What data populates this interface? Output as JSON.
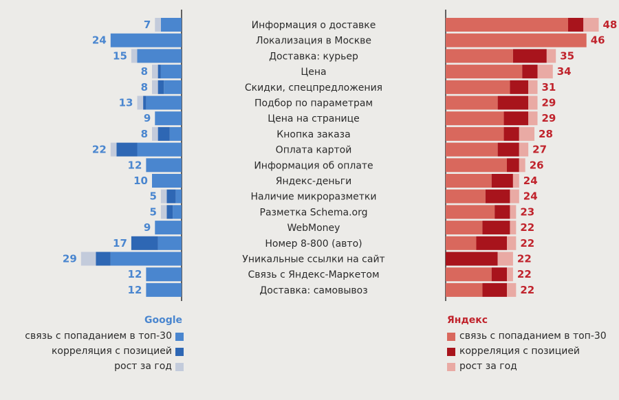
{
  "colors": {
    "background": "#ecebe8",
    "google": {
      "top30": "#4a86cf",
      "correlation": "#2e67b4",
      "growth": "#c3cbdb",
      "label": "#4a86cf"
    },
    "yandex": {
      "top30": "#d9685d",
      "correlation": "#a8141c",
      "growth": "#e9aaa4",
      "label": "#c0232c"
    }
  },
  "chart_data": {
    "type": "bar",
    "orientation": "horizontal",
    "categories": [
      "Информация о доставке",
      "Локализация в Москве",
      "Доставка: курьер",
      "Цена",
      "Скидки, спецпредложения",
      "Подбор по параметрам",
      "Цена на странице",
      "Кнопка заказа",
      "Оплата картой",
      "Информация об оплате",
      "Яндекс-деньги",
      "Наличие микроразметки",
      "Разметка Schema.org",
      "WebMoney",
      "Номер 8-800 (авто)",
      "Уникальные ссылки на сайт",
      "Связь с Яндекс-Маркетом",
      "Доставка: самовывоз"
    ],
    "google": {
      "title": "Google",
      "values": [
        7,
        24,
        15,
        8,
        8,
        13,
        9,
        8,
        22,
        12,
        10,
        5,
        5,
        9,
        17,
        29,
        12,
        12
      ],
      "series": [
        {
          "name": "связь с попаданием в топ-30",
          "values": [
            7,
            24,
            15,
            7,
            6,
            12,
            9,
            4,
            15,
            12,
            10,
            2,
            3,
            9,
            8,
            24,
            12,
            12
          ]
        },
        {
          "name": "корреляция с позицией",
          "values": [
            0,
            0,
            0,
            1,
            2,
            1,
            0,
            4,
            7,
            0,
            0,
            3,
            2,
            0,
            9,
            5,
            0,
            0
          ]
        },
        {
          "name": "рост за год",
          "values": [
            2,
            0,
            2,
            2,
            2,
            2,
            0,
            2,
            2,
            0,
            0,
            2,
            2,
            0,
            0,
            5,
            0,
            0
          ]
        }
      ]
    },
    "yandex": {
      "title": "Яндекс",
      "values": [
        48,
        46,
        35,
        34,
        31,
        29,
        29,
        28,
        27,
        26,
        24,
        24,
        23,
        22,
        22,
        22,
        22,
        22
      ],
      "series": [
        {
          "name": "связь с попаданием в топ-30",
          "values": [
            40,
            46,
            22,
            25,
            21,
            17,
            19,
            19,
            17,
            20,
            15,
            13,
            16,
            12,
            10,
            0,
            15,
            12
          ]
        },
        {
          "name": "корреляция с позицией",
          "values": [
            5,
            0,
            11,
            5,
            6,
            10,
            8,
            5,
            7,
            4,
            7,
            8,
            5,
            9,
            10,
            17,
            5,
            8
          ]
        },
        {
          "name": "рост за год",
          "values": [
            5,
            0,
            3,
            5,
            3,
            3,
            3,
            5,
            3,
            2,
            2,
            3,
            2,
            2,
            3,
            5,
            2,
            3
          ]
        }
      ]
    }
  }
}
